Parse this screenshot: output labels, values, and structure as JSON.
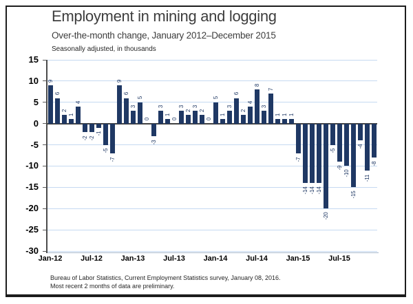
{
  "title": "Employment in mining and logging",
  "subtitle": "Over-the-month change, January 2012–December 2015",
  "units_note": "Seasonally adjusted, in thousands",
  "footer": {
    "line1": "Bureau of Labor Statistics, Current Employment Statistics survey, January 08, 2016.",
    "line2": "Most recent 2 months of data are preliminary."
  },
  "chart_data": {
    "type": "bar",
    "title": "Employment in mining and logging",
    "subtitle": "Over-the-month change, January 2012–December 2015",
    "ylabel": "Seasonally adjusted, in thousands",
    "categories": [
      "Jan-12",
      "Feb-12",
      "Mar-12",
      "Apr-12",
      "May-12",
      "Jun-12",
      "Jul-12",
      "Aug-12",
      "Sep-12",
      "Oct-12",
      "Nov-12",
      "Dec-12",
      "Jan-13",
      "Feb-13",
      "Mar-13",
      "Apr-13",
      "May-13",
      "Jun-13",
      "Jul-13",
      "Aug-13",
      "Sep-13",
      "Oct-13",
      "Nov-13",
      "Dec-13",
      "Jan-14",
      "Feb-14",
      "Mar-14",
      "Apr-14",
      "May-14",
      "Jun-14",
      "Jul-14",
      "Aug-14",
      "Sep-14",
      "Oct-14",
      "Nov-14",
      "Dec-14",
      "Jan-15",
      "Feb-15",
      "Mar-15",
      "Apr-15",
      "May-15",
      "Jun-15",
      "Jul-15",
      "Aug-15",
      "Sep-15",
      "Oct-15",
      "Nov-15",
      "Dec-15"
    ],
    "values": [
      9,
      6,
      2,
      1,
      4,
      -2,
      -2,
      -1,
      -5,
      -7,
      9,
      6,
      3,
      5,
      0,
      -3,
      3,
      1,
      0,
      3,
      2,
      3,
      2,
      0,
      5,
      1,
      3,
      6,
      2,
      4,
      8,
      3,
      7,
      1,
      1,
      1,
      -7,
      -14,
      -14,
      -14,
      -20,
      -5,
      -9,
      -10,
      -15,
      -4,
      -11,
      -8
    ],
    "x_tick_labels": [
      "Jan-12",
      "Jul-12",
      "Jan-13",
      "Jul-13",
      "Jan-14",
      "Jul-14",
      "Jan-15",
      "Jul-15"
    ],
    "x_tick_every": 6,
    "y_ticks": [
      15,
      10,
      5,
      0,
      -5,
      -10,
      -15,
      -20,
      -25,
      -30
    ],
    "ylim": [
      -30,
      15
    ],
    "grid": true,
    "legend": "none",
    "colors": {
      "bar": "#1F3864",
      "bar_label": "#1F3864",
      "gridline": "#C5D9F1",
      "zero_line": "#404040",
      "y_axis": "#4a4a4a",
      "tick_mark": "#595959",
      "bottom_axis": "#a6b8cc"
    }
  }
}
